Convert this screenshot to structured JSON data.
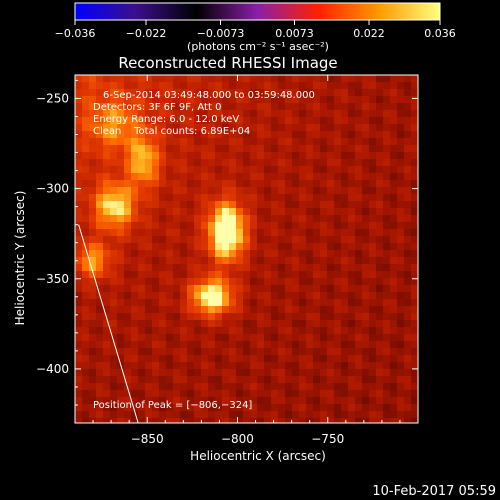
{
  "chart_data": {
    "type": "heatmap",
    "title": "Reconstructed RHESSI Image",
    "xlabel": "Heliocentric X (arcsec)",
    "ylabel": "Heliocentric Y (arcsec)",
    "xlim": [
      -890,
      -700
    ],
    "ylim": [
      -430,
      -237
    ],
    "x_ticks": [
      -850,
      -800,
      -750
    ],
    "x_tick_labels": [
      "−850",
      "−800",
      "−750"
    ],
    "y_ticks": [
      -250,
      -300,
      -350,
      -400
    ],
    "y_tick_labels": [
      "−250",
      "−300",
      "−350",
      "−400"
    ],
    "colorbar": {
      "min": -0.036,
      "max": 0.036,
      "ticks": [
        -0.036,
        -0.022,
        -0.0073,
        0.0073,
        0.022,
        0.036
      ],
      "tick_labels": [
        "−0.036",
        "−0.022",
        "−0.0073",
        "0.0073",
        "0.022",
        "0.036"
      ],
      "units_label": "(photons cm⁻² s⁻¹ asec⁻²)",
      "colors": [
        "#0000ff",
        "#3b0f8c",
        "#000000",
        "#8a1fa8",
        "#ff2000",
        "#ff9a00",
        "#ffff80"
      ]
    },
    "annotations": [
      "6-Sep-2014 03:49:48.000 to 03:59:48.000",
      "Detectors: 3F 6F 9F, Att 0",
      "Energy Range: 6.0 - 12.0 keV",
      "Clean    Total counts: 6.89E+04"
    ],
    "peak_label": "Position of Peak = [−806,−324]",
    "peak": [
      -806,
      -324
    ],
    "sources": [
      {
        "x": -806,
        "y": -324,
        "sx": 7,
        "sy": 11,
        "amp": 1.0
      },
      {
        "x": -814,
        "y": -360,
        "sx": 8,
        "sy": 7,
        "amp": 0.85
      },
      {
        "x": -868,
        "y": -310,
        "sx": 8,
        "sy": 9,
        "amp": 0.62
      },
      {
        "x": -852,
        "y": -285,
        "sx": 6,
        "sy": 10,
        "amp": 0.5
      },
      {
        "x": -880,
        "y": -340,
        "sx": 7,
        "sy": 7,
        "amp": 0.48
      },
      {
        "x": -868,
        "y": -265,
        "sx": 10,
        "sy": 10,
        "amp": 0.34
      }
    ],
    "limb_line": {
      "x": [
        -888,
        -855
      ],
      "y": [
        -320,
        -430
      ]
    }
  },
  "footer_date": "10-Feb-2017 05:59"
}
